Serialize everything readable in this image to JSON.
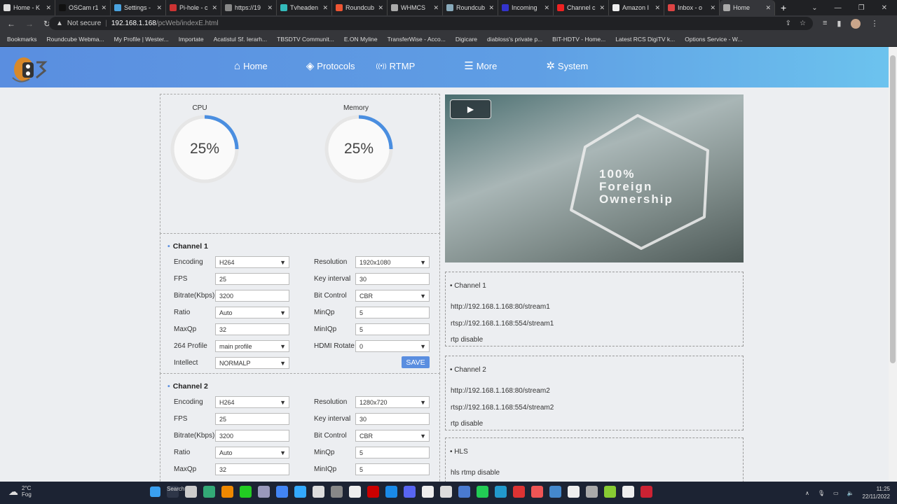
{
  "browser": {
    "tabs": [
      {
        "label": "Home - K",
        "color": "#ddd"
      },
      {
        "label": "OSCam r1",
        "color": "#111"
      },
      {
        "label": "Settings -",
        "color": "#4aa3df"
      },
      {
        "label": "Pi-hole - c",
        "color": "#c33"
      },
      {
        "label": "https://19",
        "color": "#888"
      },
      {
        "label": "Tvheaden",
        "color": "#3bb"
      },
      {
        "label": "Roundcub",
        "color": "#e53"
      },
      {
        "label": "WHMCS",
        "color": "#aaa"
      },
      {
        "label": "Roundcub",
        "color": "#8ab"
      },
      {
        "label": "Incoming",
        "color": "#33c"
      },
      {
        "label": "Channel c",
        "color": "#e22"
      },
      {
        "label": "Amazon I",
        "color": "#eee"
      },
      {
        "label": "Inbox - o",
        "color": "#d44"
      },
      {
        "label": "Home",
        "color": "#aaa",
        "active": true
      }
    ],
    "new_tab": "+",
    "security": "Not secure",
    "url_host": "192.168.1.168",
    "url_path": "/pcWeb/indexE.html",
    "bookmarks": [
      "Bookmarks",
      "Roundcube Webma...",
      "My Profile | Wester...",
      "Importate",
      "Acatistul Sf. Ierarh...",
      "TBSDTV Communit...",
      "E.ON Myline",
      "TransferWise - Acco...",
      "Digicare",
      "diabloss's private p...",
      "BIT-HDTV - Home...",
      "Latest RCS DigiTV k...",
      "Options Service - W..."
    ]
  },
  "nav": {
    "items": [
      {
        "label": "Home",
        "icon": "home-icon"
      },
      {
        "label": "Protocols",
        "icon": "layers-icon"
      },
      {
        "label": "RTMP",
        "icon": "broadcast-icon"
      },
      {
        "label": "More",
        "icon": "list-icon"
      },
      {
        "label": "System",
        "icon": "gear-icon"
      }
    ]
  },
  "status": {
    "cpu": {
      "label": "CPU",
      "value": "25%",
      "percent": 25
    },
    "memory": {
      "label": "Memory",
      "value": "25%",
      "percent": 25
    },
    "accent": "#4a8ee0"
  },
  "channels": [
    {
      "title": "Channel 1",
      "fields": {
        "encoding": {
          "label": "Encoding",
          "value": "H264"
        },
        "resolution": {
          "label": "Resolution",
          "value": "1920x1080"
        },
        "fps": {
          "label": "FPS",
          "value": "25"
        },
        "key_interval": {
          "label": "Key interval",
          "value": "30"
        },
        "bitrate": {
          "label": "Bitrate(Kbps)",
          "value": "3200"
        },
        "bit_control": {
          "label": "Bit Control",
          "value": "CBR"
        },
        "ratio": {
          "label": "Ratio",
          "value": "Auto"
        },
        "minqp": {
          "label": "MinQp",
          "value": "5"
        },
        "maxqp": {
          "label": "MaxQp",
          "value": "32"
        },
        "miniqp": {
          "label": "MinIQp",
          "value": "5"
        },
        "profile": {
          "label": "264 Profile",
          "value": "main profile"
        },
        "hdmi_rotate": {
          "label": "HDMI Rotate",
          "value": "0"
        },
        "intellect": {
          "label": "Intellect",
          "value": "NORMALP"
        }
      },
      "save": "SAVE"
    },
    {
      "title": "Channel 2",
      "fields": {
        "encoding": {
          "label": "Encoding",
          "value": "H264"
        },
        "resolution": {
          "label": "Resolution",
          "value": "1280x720"
        },
        "fps": {
          "label": "FPS",
          "value": "25"
        },
        "key_interval": {
          "label": "Key interval",
          "value": "30"
        },
        "bitrate": {
          "label": "Bitrate(Kbps)",
          "value": "3200"
        },
        "bit_control": {
          "label": "Bit Control",
          "value": "CBR"
        },
        "ratio": {
          "label": "Ratio",
          "value": "Auto"
        },
        "minqp": {
          "label": "MinQp",
          "value": "5"
        },
        "maxqp": {
          "label": "MaxQp",
          "value": "32"
        },
        "miniqp": {
          "label": "MinIQp",
          "value": "5"
        }
      }
    }
  ],
  "video": {
    "overlay_lines": [
      "100%",
      "Foreign",
      "Ownership"
    ]
  },
  "streams": [
    {
      "title": "Channel 1",
      "lines": [
        "http://192.168.1.168:80/stream1",
        "rtsp://192.168.1.168:554/stream1",
        "rtp disable"
      ]
    },
    {
      "title": "Channel 2",
      "lines": [
        "http://192.168.1.168:80/stream2",
        "rtsp://192.168.1.168:554/stream2",
        "rtp disable"
      ]
    },
    {
      "title": "HLS",
      "lines": [
        "hls rtmp disable"
      ]
    }
  ],
  "taskbar": {
    "temp": "2°C",
    "weather": "Fog",
    "search": "Search",
    "time": "11:25",
    "date": "22/11/2022"
  }
}
